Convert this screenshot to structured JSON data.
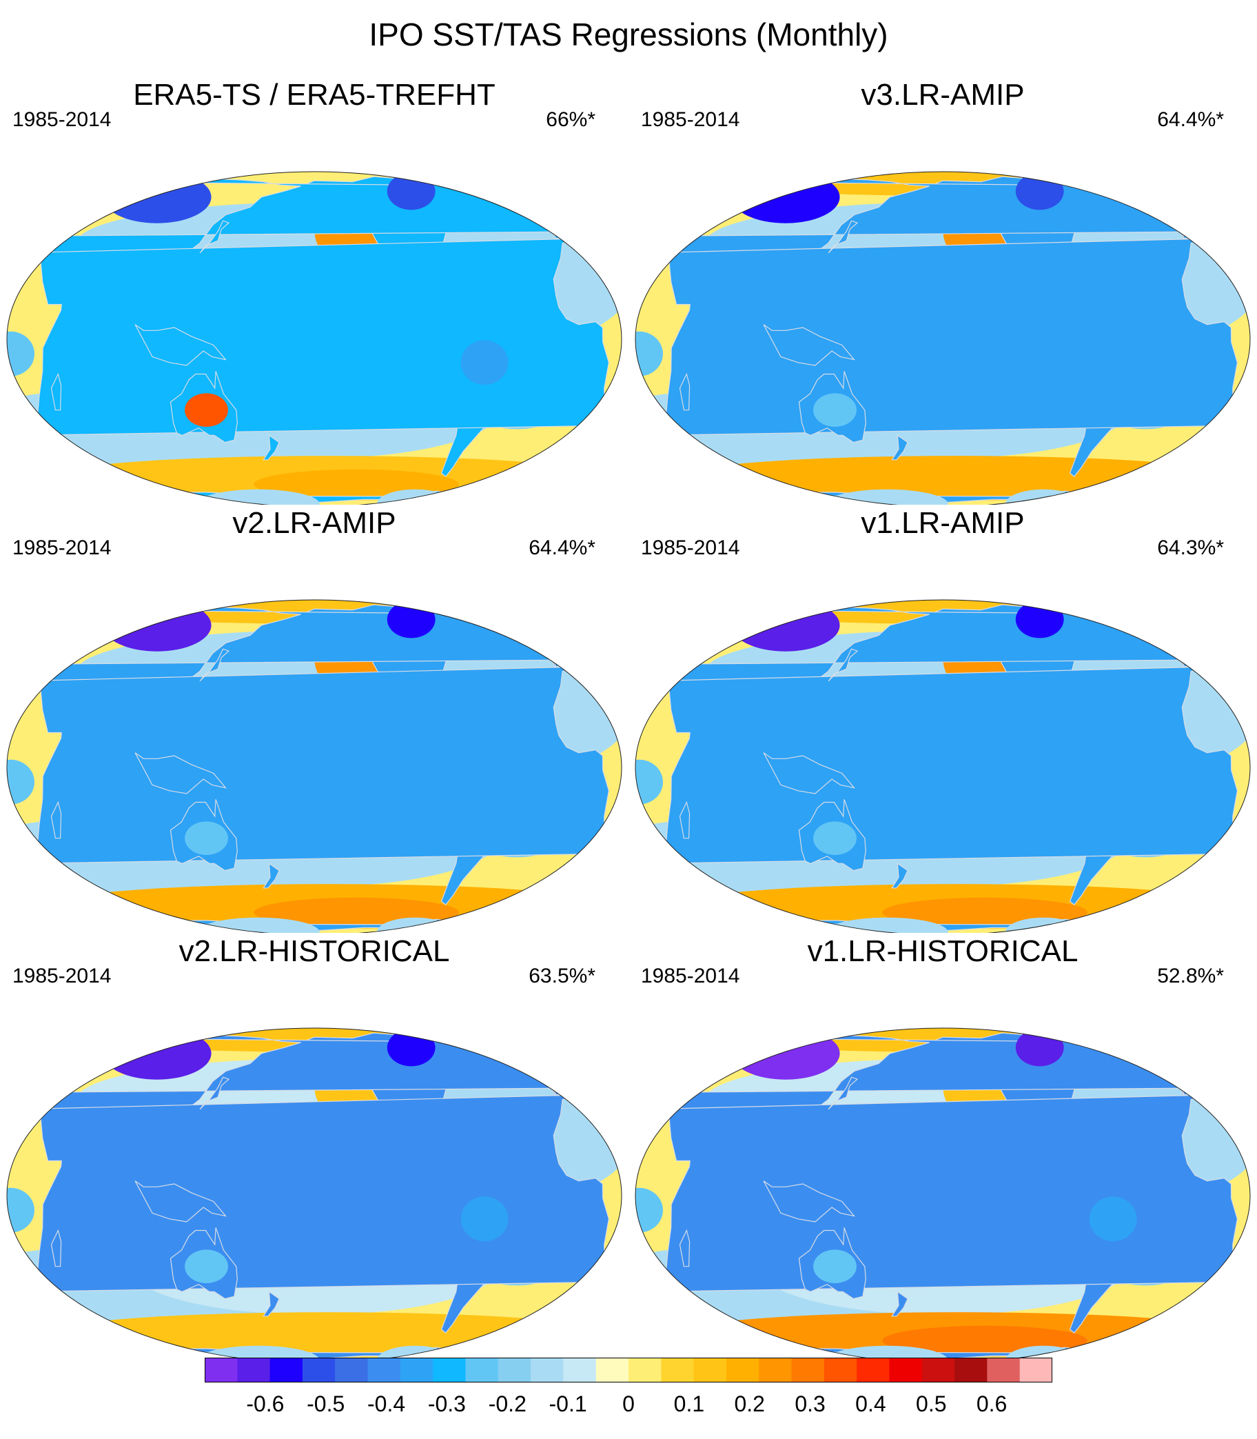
{
  "title": "IPO SST/TAS Regressions (Monthly)",
  "panels": [
    {
      "title": "ERA5-TS / ERA5-TREFHT",
      "period": "1985-2014",
      "pct": "66%*",
      "polar_warm": false,
      "pattern_strength": 1.0,
      "land_cold": 0.55,
      "southern_ocean_warm": 0.55
    },
    {
      "title": "v3.LR-AMIP",
      "period": "1985-2014",
      "pct": "64.4%*",
      "polar_warm": true,
      "pattern_strength": 1.0,
      "land_cold": 0.7,
      "southern_ocean_warm": 0.6
    },
    {
      "title": "v2.LR-AMIP",
      "period": "1985-2014",
      "pct": "64.4%*",
      "polar_warm": true,
      "pattern_strength": 1.0,
      "land_cold": 0.8,
      "southern_ocean_warm": 0.75
    },
    {
      "title": "v1.LR-AMIP",
      "period": "1985-2014",
      "pct": "64.3%*",
      "polar_warm": true,
      "pattern_strength": 1.0,
      "land_cold": 0.8,
      "southern_ocean_warm": 0.75
    },
    {
      "title": "v2.LR-HISTORICAL",
      "period": "1985-2014",
      "pct": "63.5%*",
      "polar_warm": true,
      "pattern_strength": 0.7,
      "land_cold": 0.9,
      "southern_ocean_warm": 0.45
    },
    {
      "title": "v1.LR-HISTORICAL",
      "period": "1985-2014",
      "pct": "52.8%*",
      "polar_warm": true,
      "pattern_strength": 0.6,
      "land_cold": 1.0,
      "southern_ocean_warm": 1.0
    }
  ],
  "colorbar": {
    "colors": [
      "#7f2ff0",
      "#5a1fe8",
      "#1e00ff",
      "#2d4fe9",
      "#3a6fe6",
      "#3b8ef0",
      "#2ea2f5",
      "#0fb8ff",
      "#62c6f5",
      "#86cff0",
      "#a9dcf4",
      "#c7e8f5",
      "#fffbbd",
      "#ffee75",
      "#ffd42f",
      "#ffc416",
      "#ffb000",
      "#ff9500",
      "#ff7a00",
      "#ff5400",
      "#ff2a00",
      "#ee0000",
      "#cc1010",
      "#a80e0e",
      "#e06060",
      "#ffb8b8"
    ],
    "tick_labels": [
      "-0.6",
      "-0.5",
      "-0.4",
      "-0.3",
      "-0.2",
      "-0.1",
      "0",
      "0.1",
      "0.2",
      "0.3",
      "0.4",
      "0.5",
      "0.6"
    ],
    "min": -0.7,
    "max": 0.7
  },
  "ocean_color": "#ffee75",
  "coast_color": "#d8dce6"
}
